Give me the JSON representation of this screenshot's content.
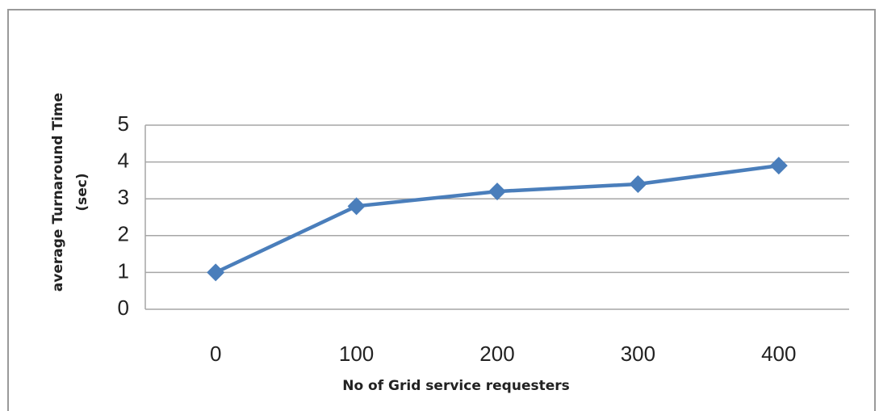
{
  "chart_data": {
    "type": "line",
    "categories": [
      "0",
      "100",
      "200",
      "300",
      "400"
    ],
    "series": [
      {
        "name": "average Turnaround Time",
        "color": "#4a7ebb",
        "values": [
          1,
          2.8,
          3.2,
          3.4,
          3.9
        ]
      }
    ],
    "x_label": "No of Grid service requesters",
    "y_label": [
      "average Turnaround Time",
      "(sec)"
    ],
    "ylim": [
      0,
      5
    ],
    "yticks": [
      0,
      1,
      2,
      3,
      4,
      5
    ],
    "grid": true
  }
}
